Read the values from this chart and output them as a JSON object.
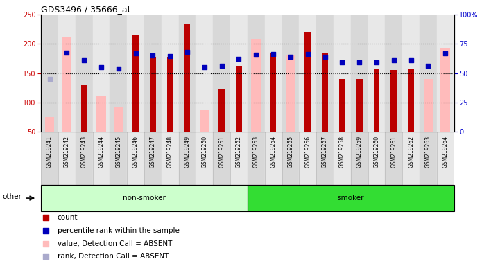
{
  "title": "GDS3496 / 35666_at",
  "samples": [
    "GSM219241",
    "GSM219242",
    "GSM219243",
    "GSM219244",
    "GSM219245",
    "GSM219246",
    "GSM219247",
    "GSM219248",
    "GSM219249",
    "GSM219250",
    "GSM219251",
    "GSM219252",
    "GSM219253",
    "GSM219254",
    "GSM219255",
    "GSM219256",
    "GSM219257",
    "GSM219258",
    "GSM219259",
    "GSM219260",
    "GSM219261",
    "GSM219262",
    "GSM219263",
    "GSM219264"
  ],
  "count": [
    null,
    null,
    130,
    null,
    null,
    215,
    178,
    178,
    234,
    null,
    122,
    163,
    null,
    185,
    null,
    221,
    185,
    140,
    140,
    158,
    155,
    158,
    null,
    null
  ],
  "absent_value": [
    75,
    211,
    null,
    111,
    92,
    null,
    null,
    null,
    null,
    87,
    null,
    null,
    207,
    null,
    182,
    null,
    null,
    null,
    null,
    null,
    null,
    null,
    140,
    192
  ],
  "absent_rank": [
    140,
    null,
    null,
    null,
    null,
    null,
    null,
    null,
    null,
    null,
    null,
    null,
    null,
    null,
    178,
    null,
    null,
    null,
    null,
    null,
    null,
    null,
    null,
    null
  ],
  "rank_squares": [
    null,
    185,
    172,
    160,
    158,
    184,
    180,
    179,
    186,
    160,
    163,
    174,
    182,
    183,
    178,
    183,
    178,
    168,
    168,
    168,
    172,
    172,
    163,
    184
  ],
  "non_smoker_count": 12,
  "smoker_count": 12,
  "ylim_min": 50,
  "ylim_max": 250,
  "y2lim_min": 0,
  "y2lim_max": 100,
  "yticks": [
    50,
    100,
    150,
    200,
    250
  ],
  "y2ticks": [
    0,
    25,
    50,
    75,
    100
  ],
  "grid_lines": [
    100,
    150,
    200
  ],
  "col_even": "#d8d8d8",
  "col_odd": "#e8e8e8",
  "colors": {
    "count": "#bb0000",
    "absent_value": "#ffbbbb",
    "rank_square": "#0000bb",
    "absent_rank_square": "#aaaacc",
    "non_smoker_bg": "#ccffcc",
    "smoker_bg": "#33dd33",
    "axis_left": "#cc0000",
    "axis_right": "#0000cc"
  }
}
